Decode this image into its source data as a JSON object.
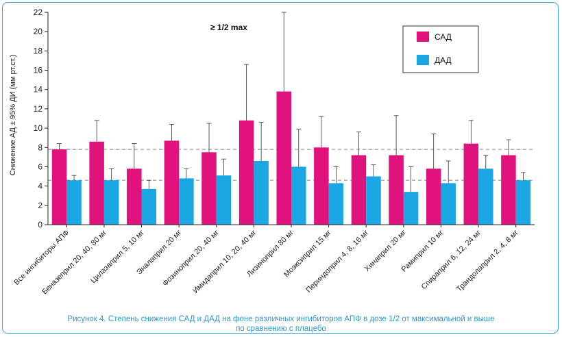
{
  "chart_data": {
    "type": "bar",
    "ylabel": "Снижение АД ± 95% ДИ (мм рт.ст.)",
    "ylim": [
      0,
      22
    ],
    "yticks": [
      0,
      2,
      4,
      6,
      8,
      10,
      12,
      14,
      16,
      18,
      20,
      22
    ],
    "annotation": "≥ 1/2 max",
    "legend_position": "top-right",
    "reference_lines": [
      7.8,
      4.6
    ],
    "categories": [
      "Все ингибиторы АПФ",
      "Беназеприл 20, 40, 80 мг",
      "Цилазаприл 5, 10 мг",
      "Эналаприл 20 мг",
      "Фозиноприл 20, 40 мг",
      "Имидаприл 10, 20, 40 мг",
      "Лизиноприл 80 мг",
      "Моэксиприл 15 мг",
      "Периндоприл 4, 8, 16 мг",
      "Хинаприл 20 мг",
      "Рамиприл 10 мг",
      "Спираприл 6, 12, 24 мг",
      "Трандолаприл 2, 4, 8 мг"
    ],
    "series": [
      {
        "name": "САД",
        "color": "#e0127d",
        "values": [
          7.8,
          8.6,
          5.8,
          8.7,
          7.5,
          10.8,
          13.8,
          8.0,
          7.2,
          7.2,
          5.8,
          8.4,
          7.2
        ],
        "error_upper": [
          8.4,
          10.8,
          8.4,
          10.4,
          10.5,
          16.6,
          22.0,
          11.2,
          9.6,
          11.3,
          9.4,
          10.8,
          8.8
        ]
      },
      {
        "name": "ДАД",
        "color": "#1aa7e4",
        "values": [
          4.6,
          4.6,
          3.7,
          4.8,
          5.1,
          6.6,
          6.0,
          4.3,
          5.0,
          3.4,
          4.3,
          5.8,
          4.6
        ],
        "error_upper": [
          5.1,
          5.8,
          4.6,
          5.8,
          6.8,
          10.6,
          9.9,
          6.0,
          6.2,
          6.0,
          6.6,
          7.2,
          5.4
        ]
      }
    ]
  },
  "caption": {
    "line1": "Рисунок 4.  Степень снижения САД и ДАД на фоне различных ингибиторов АПФ в дозе 1/2 от максимальной и выше",
    "line2": "по сравнению с плацебо"
  }
}
